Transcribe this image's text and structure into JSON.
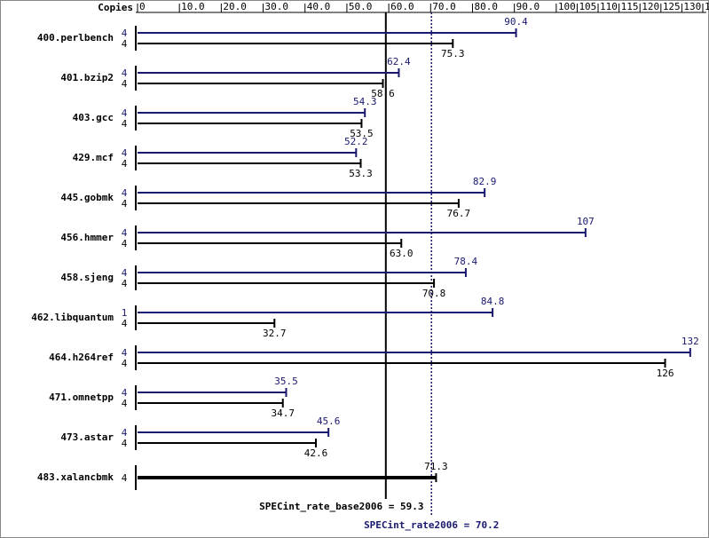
{
  "chart_data": {
    "type": "spec-bar",
    "copies_header": "Copies",
    "categories": [
      "400.perlbench",
      "401.bzip2",
      "403.gcc",
      "429.mcf",
      "445.gobmk",
      "456.hmmer",
      "458.sjeng",
      "462.libquantum",
      "464.h264ref",
      "471.omnetpp",
      "473.astar",
      "483.xalancbmk"
    ],
    "series": [
      {
        "name": "peak",
        "color": "#191970",
        "copies": [
          4,
          4,
          4,
          4,
          4,
          4,
          4,
          1,
          4,
          4,
          4,
          null
        ],
        "values": [
          90.4,
          62.4,
          54.3,
          52.2,
          82.9,
          107,
          78.4,
          84.8,
          132,
          35.5,
          45.6,
          null
        ]
      },
      {
        "name": "base",
        "color": "#000000",
        "copies": [
          4,
          4,
          4,
          4,
          4,
          4,
          4,
          4,
          4,
          4,
          4,
          4
        ],
        "values": [
          75.3,
          58.6,
          53.5,
          53.3,
          76.7,
          63.0,
          70.8,
          32.7,
          126,
          34.7,
          42.6,
          71.3
        ],
        "value_labels": [
          "75.3",
          "58.6",
          "53.5",
          "53.3",
          "76.7",
          "63.0",
          "70.8",
          "32.7",
          "126",
          "34.7",
          "42.6",
          "71.3"
        ]
      }
    ],
    "xlim": [
      0,
      135
    ],
    "xticks": [
      0,
      {
        "value": 10,
        "label": "10.0"
      },
      {
        "value": 20,
        "label": "20.0"
      },
      {
        "value": 30,
        "label": "30.0"
      },
      {
        "value": 40,
        "label": "40.0"
      },
      {
        "value": 50,
        "label": "50.0"
      },
      {
        "value": 60,
        "label": "60.0"
      },
      {
        "value": 70,
        "label": "70.0"
      },
      {
        "value": 80,
        "label": "80.0"
      },
      {
        "value": 90,
        "label": "90.0"
      },
      100,
      105,
      110,
      115,
      120,
      125,
      130,
      135
    ],
    "base_line": {
      "value": 59.3,
      "label": "SPECint_rate_base2006 = 59.3",
      "color": "#000000"
    },
    "peak_line": {
      "value": 70.2,
      "label": "SPECint_rate2006 = 70.2",
      "color": "#191970"
    }
  }
}
